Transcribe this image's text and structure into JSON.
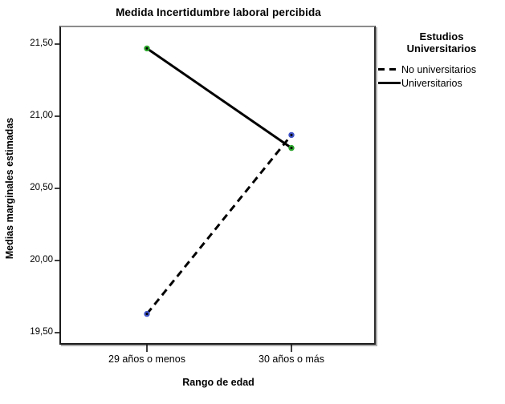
{
  "chart": {
    "title": "Medida Incertidumbre laboral percibida",
    "x_axis_title": "Rango de edad",
    "y_axis_title": "Medias marginales estimadas"
  },
  "legend": {
    "title_lines": [
      "Estudios",
      "Universitarios"
    ],
    "entries": [
      {
        "label": "No universitarios",
        "line_style": "dashed"
      },
      {
        "label": "Universitarios",
        "line_style": "solid"
      }
    ]
  },
  "colors": {
    "line": "#000000",
    "marker_core": "#000000",
    "marker_ring_no_universitarios": "#4054c8",
    "marker_ring_universitarios": "#2ca62c",
    "frame_top": "#8c8c8c"
  },
  "chart_data": {
    "type": "line",
    "title": "Medida Incertidumbre laboral percibida",
    "xlabel": "Rango de edad",
    "ylabel": "Medias marginales estimadas",
    "categories": [
      "29 años o menos",
      "30 años o más"
    ],
    "series": [
      {
        "name": "No universitarios",
        "values": [
          19.63,
          20.87
        ],
        "line_style": "dashed",
        "line_color": "#000000",
        "marker_color": "#4054c8"
      },
      {
        "name": "Universitarios",
        "values": [
          21.47,
          20.78
        ],
        "line_style": "solid",
        "line_color": "#000000",
        "marker_color": "#2ca62c"
      }
    ],
    "yticks": {
      "values": [
        19.5,
        20.0,
        20.5,
        21.0,
        21.5
      ],
      "labels": [
        "19,50",
        "20,00",
        "20,50",
        "21,00",
        "21,50"
      ]
    },
    "ylim": [
      19.39,
      21.62
    ],
    "grid": false,
    "legend_position": "right",
    "legend_title": "Estudios Universitarios"
  }
}
